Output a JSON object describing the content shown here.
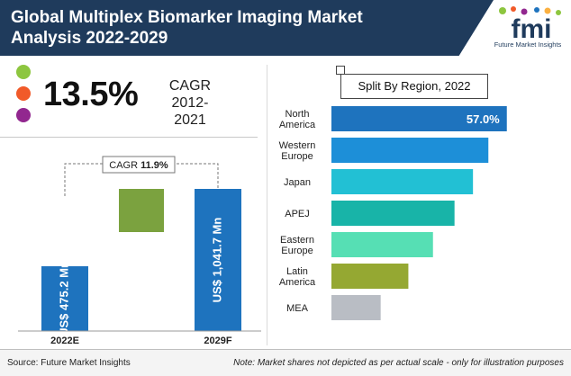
{
  "header": {
    "title_line1": "Global Multiplex Biomarker Imaging Market",
    "title_line2": "Analysis 2022-2029",
    "logo_text": "fmi",
    "logo_subtext": "Future Market Insights"
  },
  "colors": {
    "header_bg": "#1f3b5c",
    "dot_green": "#8dc63f",
    "dot_orange": "#f15a29",
    "dot_purple": "#92278f",
    "bar_blue": "#1e73be",
    "increment_green": "#7ba23f"
  },
  "kpi": {
    "cagr_value": "13.5%",
    "cagr_label": "CAGR",
    "cagr_period": "2012-2021"
  },
  "chart_data": [
    {
      "type": "bar",
      "subtype": "waterfall",
      "categories": [
        "2022E",
        "2029F"
      ],
      "values": [
        475.2,
        1041.7
      ],
      "value_labels": [
        "US$ 475.2 Mn",
        "US$ 1,041.7 Mn"
      ],
      "annotation_prefix": "CAGR",
      "annotation_value": "11.9%",
      "ylim": [
        0,
        1100
      ],
      "xlabel": "",
      "ylabel": ""
    },
    {
      "type": "bar",
      "orientation": "horizontal",
      "title": "Split By Region, 2022",
      "categories": [
        [
          "North",
          "America"
        ],
        [
          "Western",
          "Europe"
        ],
        [
          "Japan"
        ],
        [
          "APEJ"
        ],
        [
          "Eastern",
          "Europe"
        ],
        [
          "Latin",
          "America"
        ],
        [
          "MEA"
        ]
      ],
      "values": [
        57.0,
        51.0,
        46.0,
        40.0,
        33.0,
        25.0,
        16.0
      ],
      "value_label_first": "57.0%",
      "bar_colors": [
        "#1e73be",
        "#1d8fd8",
        "#22c0d4",
        "#18b4a8",
        "#56dfb4",
        "#95a832",
        "#b9bdc4"
      ],
      "xlim": [
        0,
        60
      ]
    }
  ],
  "footer": {
    "source": "Source: Future Market Insights",
    "note": "Note: Market shares not depicted as per actual scale - only for illustration purposes"
  }
}
